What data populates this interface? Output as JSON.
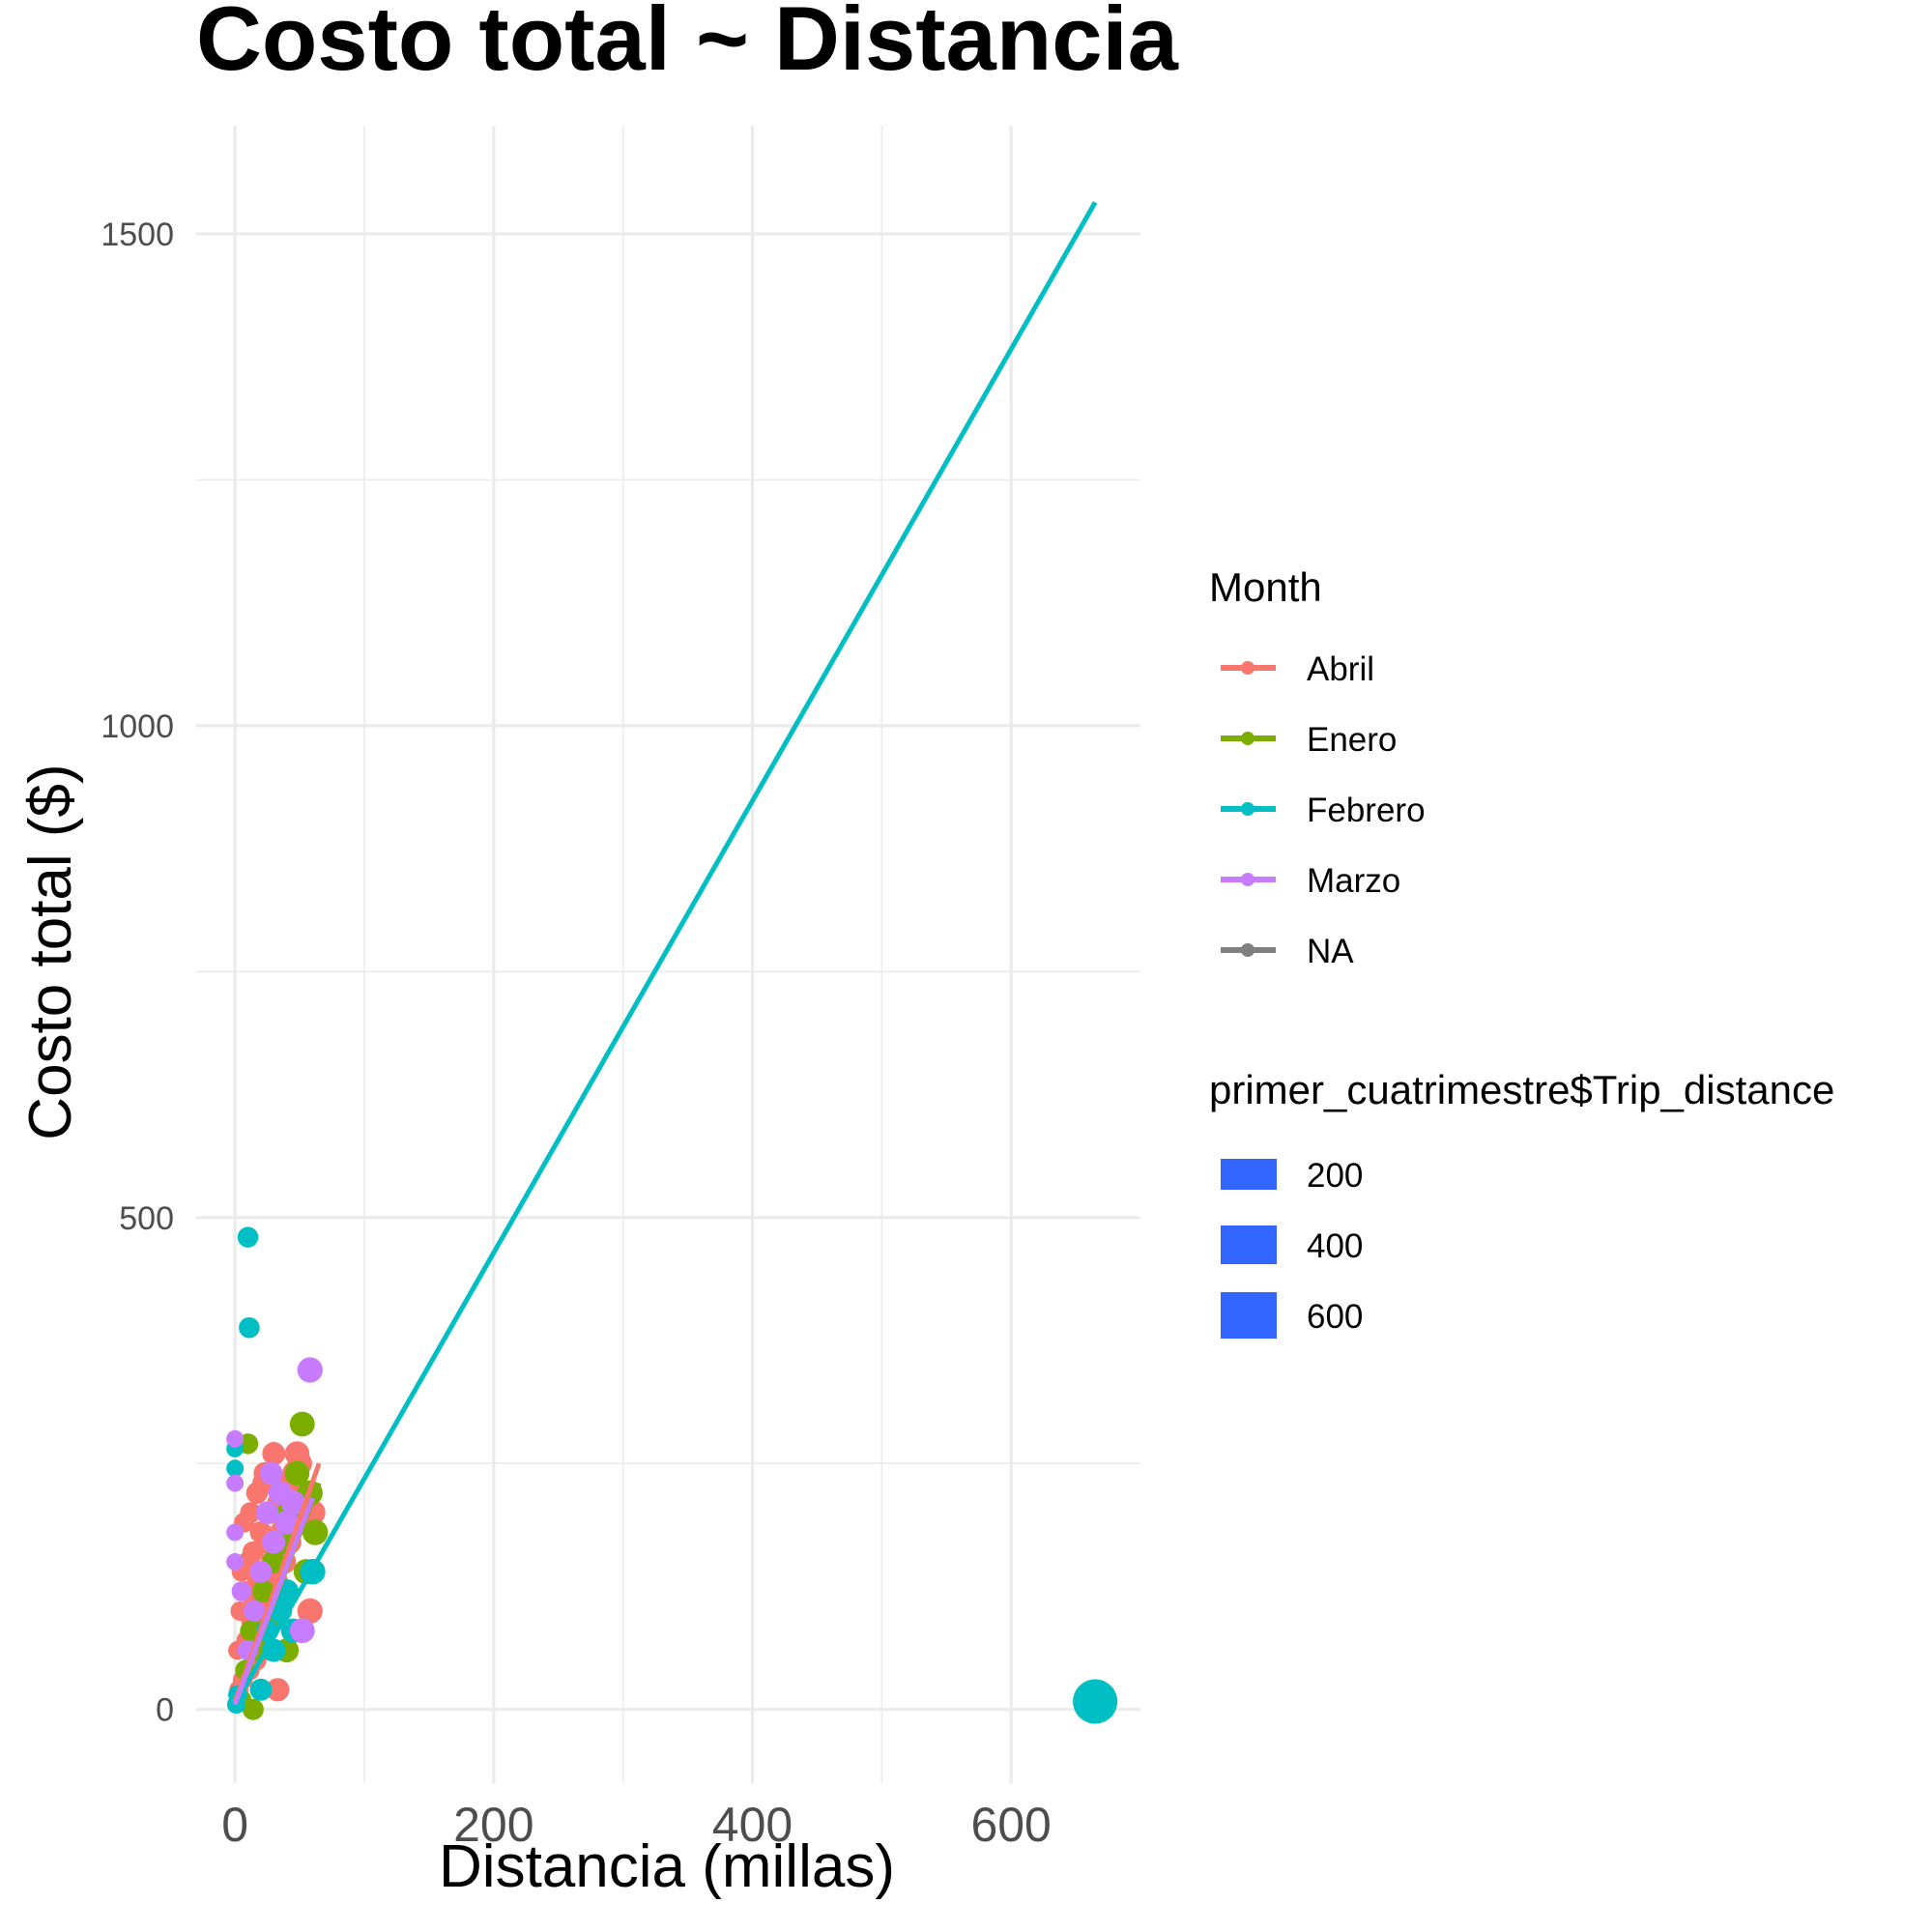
{
  "chart_data": {
    "type": "scatter",
    "title": "Costo total ~ Distancia",
    "xlabel": "Distancia (millas)",
    "ylabel": "Costo total ($)",
    "xlim": [
      -30,
      700
    ],
    "ylim": [
      -75,
      1610
    ],
    "x_ticks": [
      "0",
      "200",
      "400",
      "600"
    ],
    "y_ticks": [
      "0",
      "500",
      "1000",
      "1500"
    ],
    "grid": true,
    "legend_position": "right",
    "color_legend": {
      "title": "Month",
      "entries": [
        {
          "label": "Abril",
          "color": "#F8766D"
        },
        {
          "label": "Enero",
          "color": "#7CAE00"
        },
        {
          "label": "Febrero",
          "color": "#00BFC4"
        },
        {
          "label": "Marzo",
          "color": "#C77CFF"
        },
        {
          "label": "NA",
          "color": "#7F7F7F"
        }
      ]
    },
    "size_legend": {
      "title": "primer_cuatrimestre$Trip_distance",
      "entries": [
        {
          "label": "200",
          "value": 200
        },
        {
          "label": "400",
          "value": 400
        },
        {
          "label": "600",
          "value": 600
        }
      ],
      "color": "#3366FF"
    },
    "series": [
      {
        "name": "Abril",
        "color": "#F8766D",
        "points": [
          [
            2,
            60
          ],
          [
            3,
            20
          ],
          [
            4,
            100
          ],
          [
            5,
            140
          ],
          [
            6,
            30
          ],
          [
            7,
            190
          ],
          [
            8,
            120
          ],
          [
            9,
            70
          ],
          [
            10,
            150
          ],
          [
            11,
            40
          ],
          [
            12,
            200
          ],
          [
            13,
            90
          ],
          [
            14,
            160
          ],
          [
            15,
            110
          ],
          [
            16,
            50
          ],
          [
            17,
            220
          ],
          [
            18,
            130
          ],
          [
            19,
            80
          ],
          [
            20,
            180
          ],
          [
            21,
            60
          ],
          [
            22,
            140
          ],
          [
            23,
            240
          ],
          [
            24,
            100
          ],
          [
            25,
            170
          ],
          [
            26,
            120
          ],
          [
            27,
            200
          ],
          [
            28,
            90
          ],
          [
            29,
            150
          ],
          [
            30,
            260
          ],
          [
            32,
            130
          ],
          [
            34,
            210
          ],
          [
            36,
            180
          ],
          [
            38,
            150
          ],
          [
            40,
            230
          ],
          [
            42,
            170
          ],
          [
            44,
            200
          ],
          [
            46,
            240
          ],
          [
            48,
            260
          ],
          [
            50,
            250
          ],
          [
            52,
            220
          ],
          [
            55,
            190
          ],
          [
            58,
            100
          ],
          [
            60,
            200
          ],
          [
            33,
            20
          ],
          [
            22,
            230
          ]
        ],
        "fit": [
          [
            0,
            8
          ],
          [
            65,
            250
          ]
        ]
      },
      {
        "name": "Enero",
        "color": "#7CAE00",
        "points": [
          [
            5,
            10
          ],
          [
            8,
            40
          ],
          [
            12,
            80
          ],
          [
            14,
            0
          ],
          [
            18,
            60
          ],
          [
            22,
            120
          ],
          [
            26,
            90
          ],
          [
            30,
            150
          ],
          [
            34,
            110
          ],
          [
            38,
            170
          ],
          [
            40,
            60
          ],
          [
            42,
            200
          ],
          [
            48,
            240
          ],
          [
            52,
            290
          ],
          [
            55,
            140
          ],
          [
            58,
            220
          ],
          [
            62,
            180
          ],
          [
            10,
            270
          ]
        ],
        "fit": [
          [
            0,
            5
          ],
          [
            65,
            230
          ]
        ]
      },
      {
        "name": "Febrero",
        "color": "#00BFC4",
        "points": [
          [
            1,
            5
          ],
          [
            2,
            15
          ],
          [
            0,
            265
          ],
          [
            0,
            245
          ],
          [
            10,
            480
          ],
          [
            11,
            388
          ],
          [
            20,
            20
          ],
          [
            25,
            80
          ],
          [
            30,
            60
          ],
          [
            35,
            100
          ],
          [
            40,
            120
          ],
          [
            45,
            80
          ],
          [
            60,
            140
          ],
          [
            665,
            8
          ]
        ],
        "fit": [
          [
            0,
            5
          ],
          [
            665,
            1532
          ]
        ]
      },
      {
        "name": "Marzo",
        "color": "#C77CFF",
        "points": [
          [
            0,
            275
          ],
          [
            0,
            230
          ],
          [
            0,
            180
          ],
          [
            0,
            150
          ],
          [
            5,
            120
          ],
          [
            10,
            60
          ],
          [
            15,
            100
          ],
          [
            20,
            140
          ],
          [
            25,
            200
          ],
          [
            30,
            170
          ],
          [
            35,
            220
          ],
          [
            40,
            190
          ],
          [
            45,
            210
          ],
          [
            52,
            80
          ],
          [
            58,
            345
          ],
          [
            28,
            240
          ]
        ],
        "fit": [
          [
            0,
            5
          ],
          [
            60,
            215
          ]
        ]
      }
    ]
  }
}
